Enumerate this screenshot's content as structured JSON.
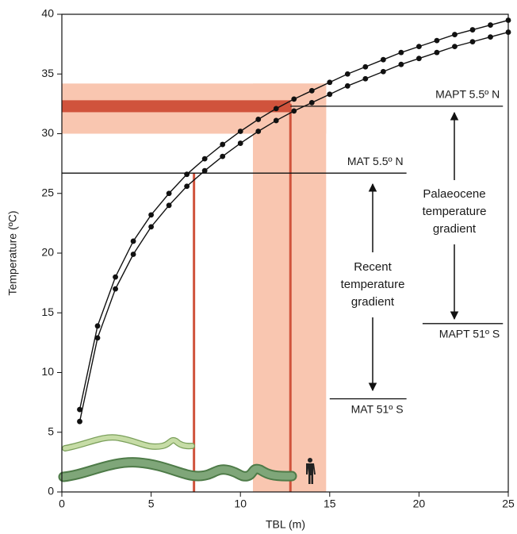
{
  "chart_data": {
    "type": "line",
    "x_label": "TBL (m)",
    "y_label": "Temperature (ºC)",
    "xlim": [
      0,
      25
    ],
    "xticks": [
      0,
      5,
      10,
      15,
      20,
      25
    ],
    "ylim": [
      0,
      40
    ],
    "yticks": [
      0,
      5,
      10,
      15,
      20,
      25,
      30,
      35,
      40
    ],
    "x": [
      1,
      2,
      3,
      4,
      5,
      6,
      7,
      8,
      9,
      10,
      11,
      12,
      13,
      14,
      15,
      16,
      17,
      18,
      19,
      20,
      21,
      22,
      23,
      24,
      25
    ],
    "series": [
      {
        "color": "#111111",
        "values": [
          6.9,
          13.9,
          18.0,
          21.0,
          23.2,
          25.0,
          26.6,
          27.9,
          29.1,
          30.2,
          31.2,
          32.1,
          32.9,
          33.6,
          34.3,
          35.0,
          35.6,
          36.2,
          36.8,
          37.3,
          37.8,
          38.3,
          38.7,
          39.1,
          39.5
        ]
      },
      {
        "color": "#111111",
        "values": [
          5.9,
          12.9,
          17.0,
          19.9,
          22.2,
          24.0,
          25.6,
          26.9,
          28.1,
          29.2,
          30.2,
          31.1,
          31.9,
          32.6,
          33.3,
          34.0,
          34.6,
          35.2,
          35.8,
          36.3,
          36.8,
          37.3,
          37.7,
          38.1,
          38.5
        ]
      }
    ],
    "bands": [
      {
        "x": [
          0,
          14.8
        ],
        "y": [
          30,
          34.2
        ],
        "color": "#f9c6b0"
      },
      {
        "x": [
          10.7,
          14.8
        ],
        "y": [
          0,
          34.2
        ],
        "color": "#f9c6b0"
      },
      {
        "x": [
          0,
          12.8
        ],
        "y": [
          31.8,
          32.8
        ],
        "color": "#d0533c"
      }
    ],
    "vlines": [
      {
        "x": 7.4,
        "y": [
          0,
          26.7
        ],
        "color": "#d0533c"
      },
      {
        "x": 12.8,
        "y": [
          0,
          32.5
        ],
        "color": "#d0533c"
      }
    ],
    "reference_lines": [
      {
        "label": "MAPT 5.5º N",
        "y": 32.3,
        "x": [
          12.8,
          24.7
        ]
      },
      {
        "label": "MAT 5.5º N",
        "y": 26.7,
        "x": [
          0,
          19.3
        ]
      },
      {
        "label": "MAPT 51º S",
        "y": 14.1,
        "x": [
          20.2,
          24.7
        ]
      },
      {
        "label": "MAT 51º S",
        "y": 7.8,
        "x": [
          15.0,
          19.3
        ]
      }
    ],
    "annotations": [
      [
        "Recent",
        "temperature",
        "gradient"
      ],
      [
        "Palaeocene",
        "temperature",
        "gradient"
      ]
    ]
  }
}
